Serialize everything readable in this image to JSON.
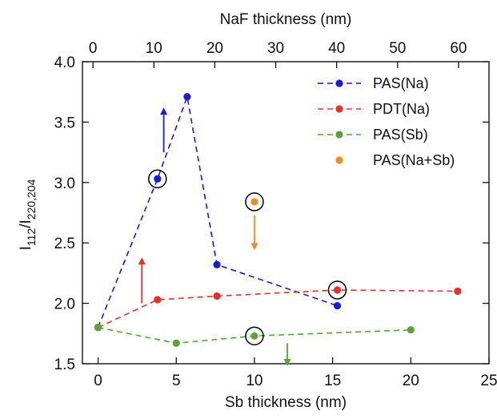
{
  "chart_data": {
    "type": "line",
    "xlabel": "Sb thickness (nm)",
    "ylabel_main": "I",
    "ylabel_sub1": "112",
    "ylabel_slash": "/I",
    "ylabel_sub2": "220,204",
    "x2label": "NaF thickness (nm)",
    "xlim": [
      -1,
      25
    ],
    "ylim": [
      1.5,
      4.0
    ],
    "x2lim": [
      -1.73,
      65
    ],
    "xticks": [
      0,
      5,
      10,
      15,
      20,
      25
    ],
    "x2ticks": [
      0,
      10,
      20,
      30,
      40,
      50,
      60
    ],
    "yticks": [
      1.5,
      2.0,
      2.5,
      3.0,
      3.5,
      4.0
    ],
    "ytick_labels": [
      "1.5",
      "2.0",
      "2.5",
      "3.0",
      "3.5",
      "4.0"
    ],
    "grid": false,
    "legend_position": "top-right",
    "series": [
      {
        "name": "PAS(Na)",
        "color": "#1a1ad8",
        "line": "dashed",
        "points": [
          [
            0,
            1.8
          ],
          [
            3.8,
            3.03
          ],
          [
            5.7,
            3.71
          ],
          [
            7.6,
            2.32
          ],
          [
            15.3,
            1.98
          ]
        ]
      },
      {
        "name": "PDT(Na)",
        "color": "#e8302a",
        "line": "dashed",
        "points": [
          [
            0,
            1.8
          ],
          [
            3.8,
            2.03
          ],
          [
            7.6,
            2.06
          ],
          [
            15.3,
            2.11
          ],
          [
            23.0,
            2.1
          ]
        ]
      },
      {
        "name": "PAS(Sb)",
        "color": "#5ba23a",
        "line": "dashed",
        "points": [
          [
            0,
            1.8
          ],
          [
            5,
            1.67
          ],
          [
            10,
            1.73
          ],
          [
            20,
            1.78
          ]
        ]
      },
      {
        "name": "PAS(Na+Sb)",
        "color": "#f08c20",
        "line": "none",
        "points": [
          [
            10,
            2.84
          ]
        ]
      }
    ],
    "circled_points": [
      [
        3.8,
        3.03
      ],
      [
        10,
        2.84
      ],
      [
        15.3,
        2.11
      ],
      [
        10,
        1.73
      ]
    ],
    "arrows": [
      {
        "x": 2.8,
        "y_from": 2.0,
        "y_to": 2.38,
        "color": "#e8302a"
      },
      {
        "x": 4.2,
        "y_from": 3.25,
        "y_to": 3.62,
        "color": "#1a1ad8"
      },
      {
        "x": 10.0,
        "y_from": 2.73,
        "y_to": 2.44,
        "color": "#f08c20"
      },
      {
        "x": 12.1,
        "y_from": 1.67,
        "y_to": 1.48,
        "color": "#5ba23a"
      }
    ]
  }
}
